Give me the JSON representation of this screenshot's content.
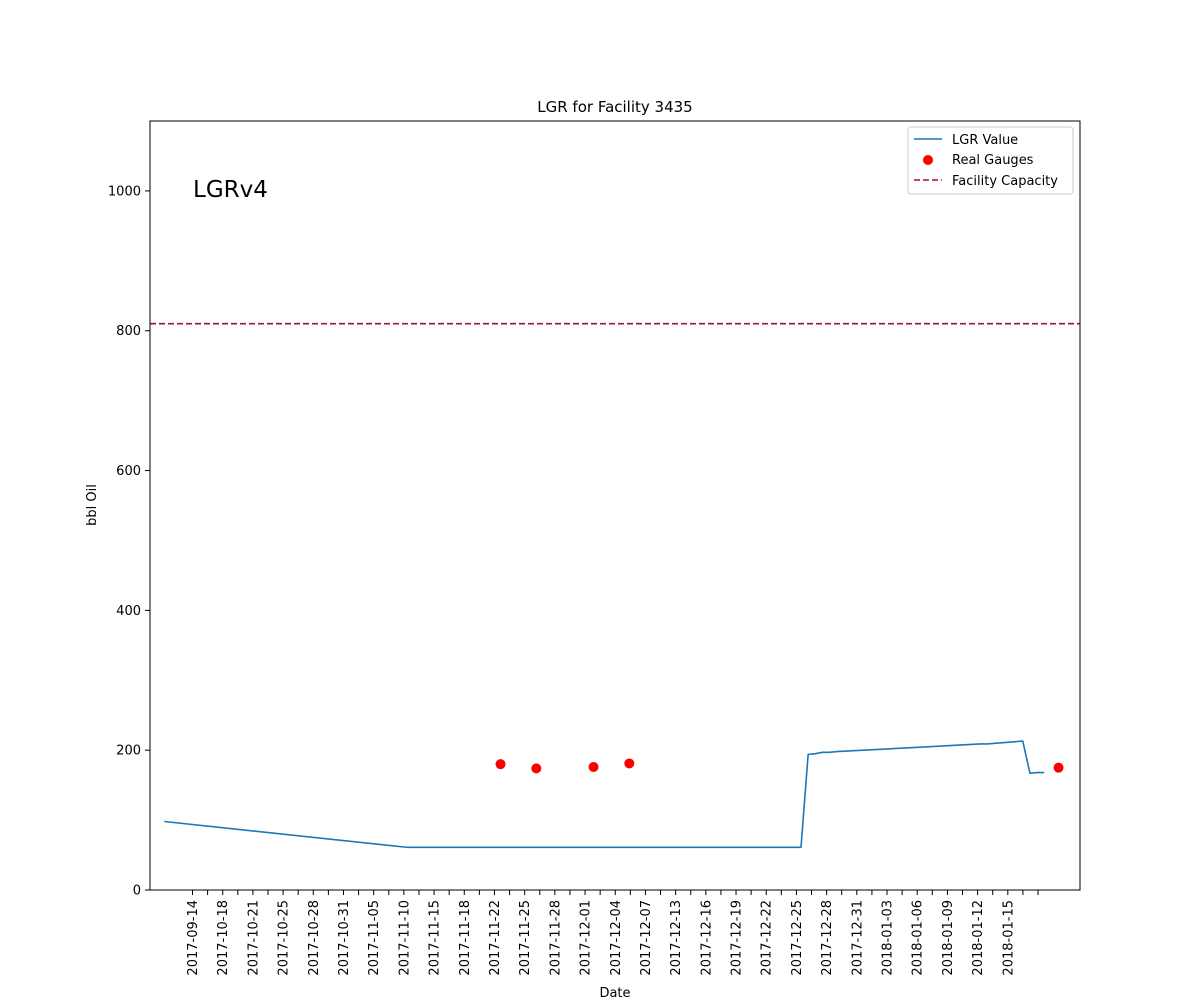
{
  "chart_data": {
    "type": "line",
    "title": "LGR for Facility 3435",
    "xlabel": "Date",
    "ylabel": "bbl Oil",
    "annotation": "LGRv4",
    "ylim": [
      0,
      1100
    ],
    "yticks": [
      0,
      200,
      400,
      600,
      800,
      1000
    ],
    "xlim": [
      "2017-09-12",
      "2018-01-20"
    ],
    "xtick_labels": [
      "2017-09-14",
      "",
      "2017-10-18",
      "",
      "2017-10-21",
      "",
      "2017-10-25",
      "",
      "2017-10-28",
      "",
      "2017-10-31",
      "",
      "2017-11-05",
      "",
      "2017-11-10",
      "",
      "2017-11-15",
      "",
      "2017-11-18",
      "",
      "2017-11-22",
      "",
      "2017-11-25",
      "",
      "2017-11-28",
      "",
      "2017-12-01",
      "",
      "2017-12-04",
      "",
      "2017-12-07",
      "",
      "2017-12-13",
      "",
      "2017-12-16",
      "",
      "2017-12-19",
      "",
      "2017-12-22",
      "",
      "2017-12-25",
      "",
      "2017-12-28",
      "",
      "2017-12-31",
      "",
      "2018-01-03",
      "",
      "2018-01-06",
      "",
      "2018-01-09",
      "",
      "2018-01-12",
      "",
      "2018-01-15",
      "",
      ""
    ],
    "grid": false,
    "legend_position": "upper-right",
    "series": [
      {
        "name": "LGR Value",
        "kind": "line",
        "color": "#1f77b4",
        "x": [
          "2017-09-14",
          "2017-10-18",
          "2017-12-12",
          "2017-12-13",
          "2017-12-14",
          "2017-12-15",
          "2017-12-16",
          "2017-12-17",
          "2017-12-30",
          "2018-01-06",
          "2018-01-07",
          "2018-01-12",
          "2018-01-13",
          "2018-01-14",
          "2018-01-15"
        ],
        "y": [
          98,
          61,
          61,
          194,
          195,
          197,
          197,
          198,
          205,
          209,
          209,
          213,
          167,
          168,
          168
        ]
      },
      {
        "name": "Real Gauges",
        "kind": "scatter",
        "color": "#ff0000",
        "x": [
          "2017-10-31",
          "2017-11-05",
          "2017-11-13",
          "2017-11-18",
          "2018-01-17"
        ],
        "y": [
          180,
          174,
          176,
          181,
          175
        ]
      },
      {
        "name": "Facility Capacity",
        "kind": "hline",
        "color": "#a50f32",
        "y": 810
      }
    ]
  }
}
